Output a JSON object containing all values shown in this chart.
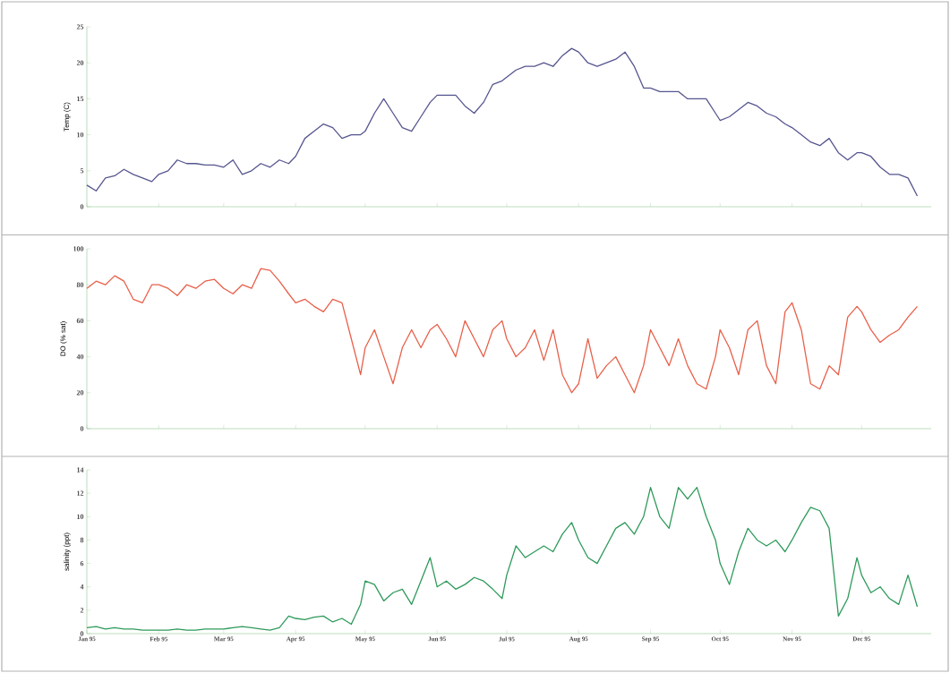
{
  "chart_data": [
    {
      "type": "line",
      "ylabel": "Temp (C)",
      "color": "#55558f",
      "x": [
        "1995-01-01",
        "1995-01-05",
        "1995-01-09",
        "1995-01-13",
        "1995-01-17",
        "1995-01-21",
        "1995-01-25",
        "1995-01-29",
        "1995-02-01",
        "1995-02-05",
        "1995-02-09",
        "1995-02-13",
        "1995-02-17",
        "1995-02-21",
        "1995-02-25",
        "1995-03-01",
        "1995-03-05",
        "1995-03-09",
        "1995-03-13",
        "1995-03-17",
        "1995-03-21",
        "1995-03-25",
        "1995-03-29",
        "1995-04-01",
        "1995-04-05",
        "1995-04-09",
        "1995-04-13",
        "1995-04-17",
        "1995-04-21",
        "1995-04-25",
        "1995-04-29",
        "1995-05-01",
        "1995-05-05",
        "1995-05-09",
        "1995-05-13",
        "1995-05-17",
        "1995-05-21",
        "1995-05-25",
        "1995-05-29",
        "1995-06-01",
        "1995-06-05",
        "1995-06-09",
        "1995-06-13",
        "1995-06-17",
        "1995-06-21",
        "1995-06-25",
        "1995-06-29",
        "1995-07-01",
        "1995-07-05",
        "1995-07-09",
        "1995-07-13",
        "1995-07-17",
        "1995-07-21",
        "1995-07-25",
        "1995-07-29",
        "1995-08-01",
        "1995-08-05",
        "1995-08-09",
        "1995-08-13",
        "1995-08-17",
        "1995-08-21",
        "1995-08-25",
        "1995-08-29",
        "1995-09-01",
        "1995-09-05",
        "1995-09-09",
        "1995-09-13",
        "1995-09-17",
        "1995-09-21",
        "1995-09-25",
        "1995-09-29",
        "1995-10-01",
        "1995-10-05",
        "1995-10-09",
        "1995-10-13",
        "1995-10-17",
        "1995-10-21",
        "1995-10-25",
        "1995-10-29",
        "1995-11-01",
        "1995-11-05",
        "1995-11-09",
        "1995-11-13",
        "1995-11-17",
        "1995-11-21",
        "1995-11-25",
        "1995-11-29",
        "1995-12-01",
        "1995-12-05",
        "1995-12-09",
        "1995-12-13",
        "1995-12-17",
        "1995-12-21",
        "1995-12-25"
      ],
      "ylim": [
        0,
        25
      ],
      "yticks": [
        0,
        5,
        10,
        15,
        20,
        25
      ],
      "xlim": [
        "1995-01-01",
        "1995-12-31"
      ],
      "tick_labels": "y",
      "xticks": [
        {
          "value": "1995-01-01",
          "label": null
        },
        {
          "value": "1995-02-01",
          "label": null
        },
        {
          "value": "1995-03-01",
          "label": null
        },
        {
          "value": "1995-04-01",
          "label": null
        },
        {
          "value": "1995-05-01",
          "label": null
        },
        {
          "value": "1995-06-01",
          "label": null
        },
        {
          "value": "1995-07-01",
          "label": null
        },
        {
          "value": "1995-08-01",
          "label": null
        },
        {
          "value": "1995-09-01",
          "label": null
        },
        {
          "value": "1995-10-01",
          "label": null
        },
        {
          "value": "1995-11-01",
          "label": null
        },
        {
          "value": "1995-12-01",
          "label": null
        }
      ],
      "values": [
        3,
        2.2,
        4,
        4.3,
        5.2,
        4.5,
        4,
        3.5,
        4.5,
        5,
        6.5,
        6,
        6,
        5.8,
        5.8,
        5.5,
        6.5,
        4.5,
        5,
        6,
        5.5,
        6.5,
        6,
        7,
        9.5,
        10.5,
        11.5,
        11,
        9.5,
        10,
        10,
        10.5,
        13,
        15,
        13,
        11,
        10.5,
        12.5,
        14.5,
        15.5,
        15.5,
        15.5,
        14,
        13,
        14.5,
        17,
        17.5,
        18,
        19,
        19.5,
        19.5,
        20,
        19.5,
        21,
        22,
        21.5,
        20,
        19.5,
        20,
        20.5,
        21.5,
        19.5,
        16.5,
        16.5,
        16,
        16,
        16,
        15,
        15,
        15,
        13,
        12,
        12.5,
        13.5,
        14.5,
        14,
        13,
        12.5,
        11.5,
        11,
        10,
        9,
        8.5,
        9.5,
        7.5,
        6.5,
        7.5,
        7.5,
        7,
        5.5,
        4.5,
        4.5,
        4,
        1.5
      ]
    },
    {
      "type": "line",
      "ylabel": "DO (% sat)",
      "color": "#e8604a",
      "x": [
        "1995-01-01",
        "1995-01-05",
        "1995-01-09",
        "1995-01-13",
        "1995-01-17",
        "1995-01-21",
        "1995-01-25",
        "1995-01-29",
        "1995-02-01",
        "1995-02-05",
        "1995-02-09",
        "1995-02-13",
        "1995-02-17",
        "1995-02-21",
        "1995-02-25",
        "1995-03-01",
        "1995-03-05",
        "1995-03-09",
        "1995-03-13",
        "1995-03-17",
        "1995-03-21",
        "1995-03-25",
        "1995-03-29",
        "1995-04-01",
        "1995-04-05",
        "1995-04-09",
        "1995-04-13",
        "1995-04-17",
        "1995-04-21",
        "1995-04-25",
        "1995-04-29",
        "1995-05-01",
        "1995-05-05",
        "1995-05-09",
        "1995-05-13",
        "1995-05-17",
        "1995-05-21",
        "1995-05-25",
        "1995-05-29",
        "1995-06-01",
        "1995-06-05",
        "1995-06-09",
        "1995-06-13",
        "1995-06-17",
        "1995-06-21",
        "1995-06-25",
        "1995-06-29",
        "1995-07-01",
        "1995-07-05",
        "1995-07-09",
        "1995-07-13",
        "1995-07-17",
        "1995-07-21",
        "1995-07-25",
        "1995-07-29",
        "1995-08-01",
        "1995-08-05",
        "1995-08-09",
        "1995-08-13",
        "1995-08-17",
        "1995-08-21",
        "1995-08-25",
        "1995-08-29",
        "1995-09-01",
        "1995-09-05",
        "1995-09-09",
        "1995-09-13",
        "1995-09-17",
        "1995-09-21",
        "1995-09-25",
        "1995-09-29",
        "1995-10-01",
        "1995-10-05",
        "1995-10-09",
        "1995-10-13",
        "1995-10-17",
        "1995-10-21",
        "1995-10-25",
        "1995-10-29",
        "1995-11-01",
        "1995-11-05",
        "1995-11-09",
        "1995-11-13",
        "1995-11-17",
        "1995-11-21",
        "1995-11-25",
        "1995-11-29",
        "1995-12-01",
        "1995-12-05",
        "1995-12-09",
        "1995-12-13",
        "1995-12-17",
        "1995-12-21",
        "1995-12-25"
      ],
      "ylim": [
        0,
        100
      ],
      "yticks": [
        0,
        20,
        40,
        60,
        80,
        100
      ],
      "xlim": [
        "1995-01-01",
        "1995-12-31"
      ],
      "tick_labels": "y",
      "xticks": [
        {
          "value": "1995-01-01",
          "label": null
        },
        {
          "value": "1995-02-01",
          "label": null
        },
        {
          "value": "1995-03-01",
          "label": null
        },
        {
          "value": "1995-04-01",
          "label": null
        },
        {
          "value": "1995-05-01",
          "label": null
        },
        {
          "value": "1995-06-01",
          "label": null
        },
        {
          "value": "1995-07-01",
          "label": null
        },
        {
          "value": "1995-08-01",
          "label": null
        },
        {
          "value": "1995-09-01",
          "label": null
        },
        {
          "value": "1995-10-01",
          "label": null
        },
        {
          "value": "1995-11-01",
          "label": null
        },
        {
          "value": "1995-12-01",
          "label": null
        }
      ],
      "values": [
        78,
        82,
        80,
        85,
        82,
        72,
        70,
        80,
        80,
        78,
        74,
        80,
        78,
        82,
        83,
        78,
        75,
        80,
        78,
        89,
        88,
        82,
        75,
        70,
        72,
        68,
        65,
        72,
        70,
        50,
        30,
        45,
        55,
        40,
        25,
        45,
        55,
        45,
        55,
        58,
        50,
        40,
        60,
        50,
        40,
        55,
        60,
        50,
        40,
        45,
        55,
        38,
        55,
        30,
        20,
        25,
        50,
        28,
        35,
        40,
        30,
        20,
        35,
        55,
        45,
        35,
        50,
        35,
        25,
        22,
        40,
        55,
        45,
        30,
        55,
        60,
        35,
        25,
        65,
        70,
        55,
        25,
        22,
        35,
        30,
        62,
        68,
        65,
        55,
        48,
        52,
        55,
        62,
        68
      ]
    },
    {
      "type": "line",
      "ylabel": "salinity (ppt)",
      "color": "#2e9a5a",
      "x": [
        "1995-01-01",
        "1995-01-05",
        "1995-01-09",
        "1995-01-13",
        "1995-01-17",
        "1995-01-21",
        "1995-01-25",
        "1995-01-29",
        "1995-02-01",
        "1995-02-05",
        "1995-02-09",
        "1995-02-13",
        "1995-02-17",
        "1995-02-21",
        "1995-02-25",
        "1995-03-01",
        "1995-03-05",
        "1995-03-09",
        "1995-03-13",
        "1995-03-17",
        "1995-03-21",
        "1995-03-25",
        "1995-03-29",
        "1995-04-01",
        "1995-04-05",
        "1995-04-09",
        "1995-04-13",
        "1995-04-17",
        "1995-04-21",
        "1995-04-25",
        "1995-04-29",
        "1995-05-01",
        "1995-05-05",
        "1995-05-09",
        "1995-05-13",
        "1995-05-17",
        "1995-05-21",
        "1995-05-25",
        "1995-05-29",
        "1995-06-01",
        "1995-06-05",
        "1995-06-09",
        "1995-06-13",
        "1995-06-17",
        "1995-06-21",
        "1995-06-25",
        "1995-06-29",
        "1995-07-01",
        "1995-07-05",
        "1995-07-09",
        "1995-07-13",
        "1995-07-17",
        "1995-07-21",
        "1995-07-25",
        "1995-07-29",
        "1995-08-01",
        "1995-08-05",
        "1995-08-09",
        "1995-08-13",
        "1995-08-17",
        "1995-08-21",
        "1995-08-25",
        "1995-08-29",
        "1995-09-01",
        "1995-09-05",
        "1995-09-09",
        "1995-09-13",
        "1995-09-17",
        "1995-09-21",
        "1995-09-25",
        "1995-09-29",
        "1995-10-01",
        "1995-10-05",
        "1995-10-09",
        "1995-10-13",
        "1995-10-17",
        "1995-10-21",
        "1995-10-25",
        "1995-10-29",
        "1995-11-01",
        "1995-11-05",
        "1995-11-09",
        "1995-11-13",
        "1995-11-17",
        "1995-11-21",
        "1995-11-25",
        "1995-11-29",
        "1995-12-01",
        "1995-12-05",
        "1995-12-09",
        "1995-12-13",
        "1995-12-17",
        "1995-12-21",
        "1995-12-25"
      ],
      "ylim": [
        0,
        14
      ],
      "yticks": [
        0,
        2,
        4,
        6,
        8,
        10,
        12,
        14
      ],
      "xlim": [
        "1995-01-01",
        "1995-12-31"
      ],
      "xticks": [
        {
          "value": "1995-01-01",
          "label": "Jan 95"
        },
        {
          "value": "1995-02-01",
          "label": "Feb 95"
        },
        {
          "value": "1995-03-01",
          "label": "Mar 95"
        },
        {
          "value": "1995-04-01",
          "label": "Apr 95"
        },
        {
          "value": "1995-05-01",
          "label": "May 95"
        },
        {
          "value": "1995-06-01",
          "label": "Jun 95"
        },
        {
          "value": "1995-07-01",
          "label": "Jul 95"
        },
        {
          "value": "1995-08-01",
          "label": "Aug 95"
        },
        {
          "value": "1995-09-01",
          "label": "Sep 95"
        },
        {
          "value": "1995-10-01",
          "label": "Oct 95"
        },
        {
          "value": "1995-11-01",
          "label": "Nov 95"
        },
        {
          "value": "1995-12-01",
          "label": "Dec 95"
        }
      ],
      "values": [
        0.5,
        0.6,
        0.4,
        0.5,
        0.4,
        0.4,
        0.3,
        0.3,
        0.3,
        0.3,
        0.4,
        0.3,
        0.3,
        0.4,
        0.4,
        0.4,
        0.5,
        0.6,
        0.5,
        0.4,
        0.3,
        0.5,
        1.5,
        1.3,
        1.2,
        1.4,
        1.5,
        1,
        1.3,
        0.8,
        2.5,
        4.5,
        4.2,
        2.8,
        3.5,
        3.8,
        2.5,
        4.5,
        6.5,
        4,
        4.5,
        3.8,
        4.2,
        4.8,
        4.5,
        3.8,
        3,
        5,
        7.5,
        6.5,
        7,
        7.5,
        7,
        8.5,
        9.5,
        8,
        6.5,
        6,
        7.5,
        9,
        9.5,
        8.5,
        10,
        12.5,
        10,
        9,
        12.5,
        11.5,
        12.5,
        10,
        8,
        6,
        4.2,
        7,
        9,
        8,
        7.5,
        8,
        7,
        8,
        9.5,
        10.8,
        10.5,
        9,
        1.5,
        3,
        6.5,
        5,
        3.5,
        4,
        3,
        2.5,
        5,
        2.3
      ]
    }
  ]
}
